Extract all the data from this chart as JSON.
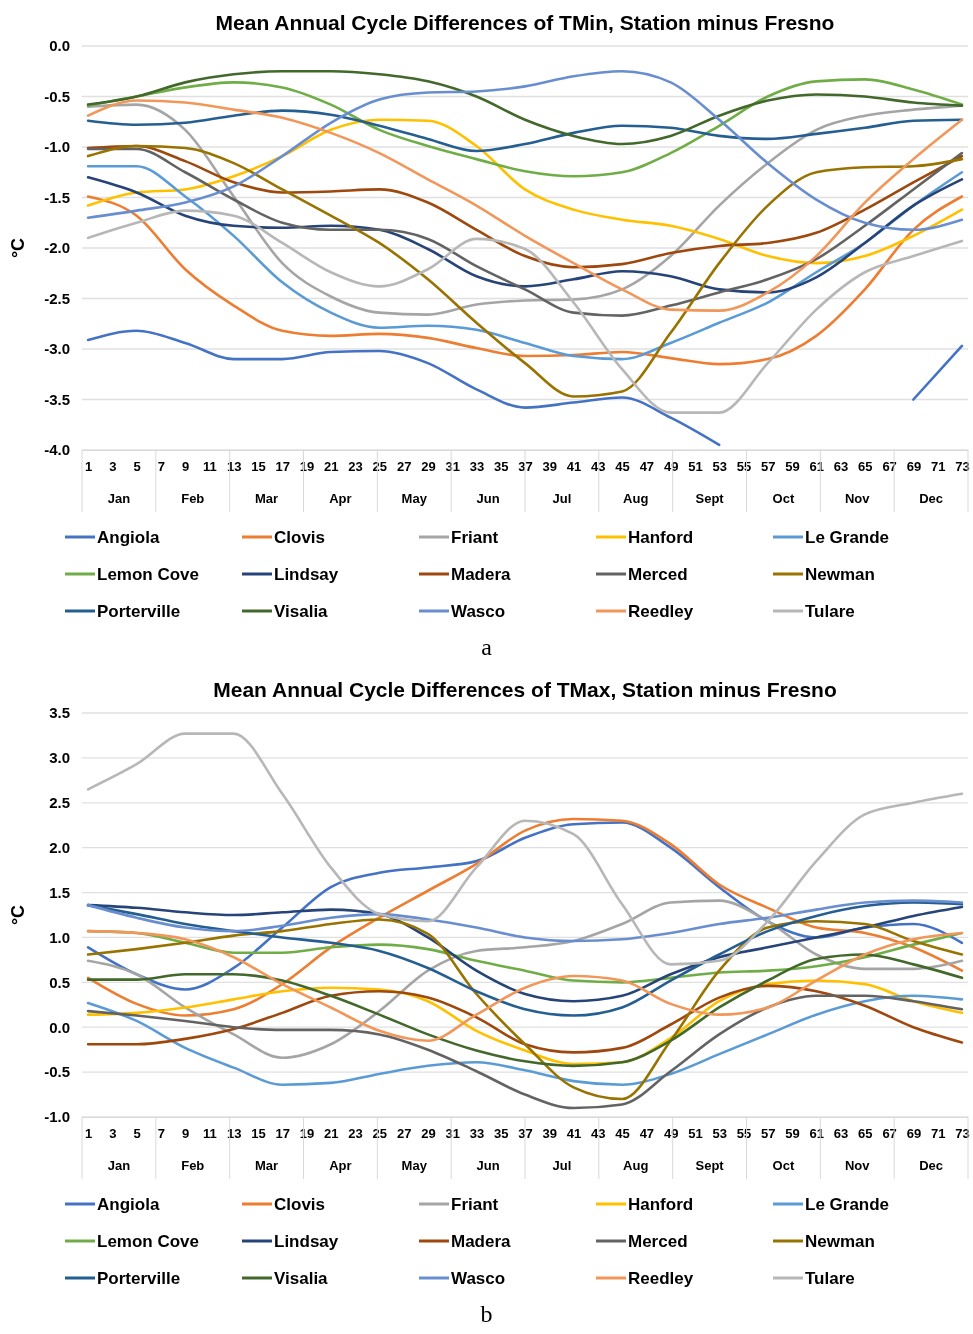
{
  "chart_data": [
    {
      "type": "line",
      "title": "Mean Annual Cycle Differences of TMin, Station minus Fresno",
      "ylabel": "°C",
      "xlim": [
        0.5,
        73.5
      ],
      "xticks": [
        1,
        3,
        5,
        7,
        9,
        11,
        13,
        15,
        17,
        19,
        21,
        23,
        25,
        27,
        29,
        31,
        33,
        35,
        37,
        39,
        41,
        43,
        45,
        47,
        49,
        51,
        53,
        55,
        57,
        59,
        61,
        63,
        65,
        67,
        69,
        71,
        73
      ],
      "ylim": [
        -4,
        0
      ],
      "yticks": [
        {
          "value": -4,
          "label": "-4.0"
        },
        {
          "value": -3.5,
          "label": "-3.5"
        },
        {
          "value": -3,
          "label": "-3.0"
        },
        {
          "value": -2.5,
          "label": "-2.5"
        },
        {
          "value": -2,
          "label": "-2.0"
        },
        {
          "value": -1.5,
          "label": "-1.5"
        },
        {
          "value": -1,
          "label": "-1.0"
        },
        {
          "value": -0.5,
          "label": "-0.5"
        },
        {
          "value": 0,
          "label": "0.0"
        }
      ],
      "grid": "y",
      "legend": "bottom",
      "x": [
        1,
        5,
        9,
        13,
        17,
        21,
        25,
        29,
        33,
        37,
        41,
        45,
        49,
        53,
        57,
        61,
        65,
        69,
        73
      ],
      "annotations": [
        "Jan",
        "Feb",
        "Mar",
        "Apr",
        "May",
        "Jun",
        "Jul",
        "Aug",
        "Sept",
        "Oct",
        "Nov",
        "Dec",
        "a"
      ],
      "series": [
        {
          "name": "Angiola",
          "color": "#4472c4",
          "values": [
            -2.91,
            -2.82,
            -2.94,
            -3.1,
            -3.1,
            -3.03,
            -3.02,
            -3.14,
            -3.4,
            -3.58,
            -3.53,
            -3.48,
            -3.68,
            -3.95,
            null,
            null,
            null,
            -3.5,
            -2.97
          ]
        },
        {
          "name": "Clovis",
          "color": "#ed7d31",
          "values": [
            -1.49,
            -1.68,
            -2.21,
            -2.57,
            -2.82,
            -2.87,
            -2.85,
            -2.89,
            -2.99,
            -3.07,
            -3.06,
            -3.03,
            -3.09,
            -3.15,
            -3.1,
            -2.87,
            -2.41,
            -1.82,
            -1.49
          ]
        },
        {
          "name": "Friant",
          "color": "#a5a5a5",
          "values": [
            -0.6,
            -0.58,
            -0.83,
            -1.49,
            -2.15,
            -2.48,
            -2.64,
            -2.66,
            -2.56,
            -2.52,
            -2.51,
            -2.41,
            -2.08,
            -1.58,
            -1.16,
            -0.83,
            -0.69,
            -0.63,
            -0.59
          ]
        },
        {
          "name": "Hanford",
          "color": "#ffc000",
          "values": [
            -1.58,
            -1.45,
            -1.42,
            -1.29,
            -1.09,
            -0.83,
            -0.73,
            -0.74,
            -0.99,
            -1.42,
            -1.62,
            -1.72,
            -1.78,
            -1.91,
            -2.08,
            -2.15,
            -2.08,
            -1.88,
            -1.62
          ]
        },
        {
          "name": "Le Grande",
          "color": "#5b9bd5",
          "values": [
            -1.19,
            -1.19,
            -1.49,
            -1.88,
            -2.34,
            -2.64,
            -2.79,
            -2.77,
            -2.81,
            -2.94,
            -3.07,
            -3.1,
            -2.94,
            -2.74,
            -2.54,
            -2.24,
            -1.95,
            -1.58,
            -1.25
          ]
        },
        {
          "name": "Lemon Cove",
          "color": "#70ad47",
          "values": [
            -0.59,
            -0.5,
            -0.41,
            -0.36,
            -0.41,
            -0.58,
            -0.83,
            -0.99,
            -1.12,
            -1.24,
            -1.29,
            -1.25,
            -1.06,
            -0.79,
            -0.5,
            -0.35,
            -0.33,
            -0.43,
            -0.58
          ]
        },
        {
          "name": "Lindsay",
          "color": "#264478",
          "values": [
            -1.3,
            -1.45,
            -1.68,
            -1.78,
            -1.8,
            -1.78,
            -1.82,
            -2.01,
            -2.28,
            -2.38,
            -2.31,
            -2.23,
            -2.28,
            -2.41,
            -2.44,
            -2.29,
            -1.95,
            -1.58,
            -1.32
          ]
        },
        {
          "name": "Madera",
          "color": "#9e480e",
          "values": [
            -1.01,
            -0.99,
            -1.14,
            -1.35,
            -1.45,
            -1.44,
            -1.42,
            -1.55,
            -1.82,
            -2.08,
            -2.19,
            -2.16,
            -2.05,
            -1.98,
            -1.95,
            -1.85,
            -1.62,
            -1.35,
            -1.09
          ]
        },
        {
          "name": "Merced",
          "color": "#636363",
          "values": [
            -1.02,
            -1.02,
            -1.25,
            -1.52,
            -1.75,
            -1.82,
            -1.82,
            -1.91,
            -2.18,
            -2.41,
            -2.64,
            -2.67,
            -2.57,
            -2.44,
            -2.31,
            -2.11,
            -1.78,
            -1.42,
            -1.06
          ]
        },
        {
          "name": "Newman",
          "color": "#997300",
          "values": [
            -1.09,
            -0.99,
            -1.01,
            -1.16,
            -1.42,
            -1.68,
            -1.95,
            -2.31,
            -2.74,
            -3.14,
            -3.47,
            -3.42,
            -2.84,
            -2.15,
            -1.58,
            -1.25,
            -1.2,
            -1.19,
            -1.12
          ]
        },
        {
          "name": "Porterville",
          "color": "#255e91",
          "values": [
            -0.74,
            -0.78,
            -0.76,
            -0.69,
            -0.64,
            -0.68,
            -0.79,
            -0.92,
            -1.04,
            -0.97,
            -0.86,
            -0.79,
            -0.81,
            -0.89,
            -0.92,
            -0.87,
            -0.81,
            -0.74,
            -0.73
          ]
        },
        {
          "name": "Visalia",
          "color": "#43682b",
          "values": [
            -0.58,
            -0.5,
            -0.36,
            -0.28,
            -0.25,
            -0.25,
            -0.28,
            -0.35,
            -0.5,
            -0.73,
            -0.89,
            -0.97,
            -0.89,
            -0.69,
            -0.54,
            -0.48,
            -0.5,
            -0.56,
            -0.59
          ]
        },
        {
          "name": "Wasco",
          "color": "#698ed0",
          "values": [
            -1.7,
            -1.63,
            -1.55,
            -1.39,
            -1.09,
            -0.76,
            -0.53,
            -0.46,
            -0.45,
            -0.4,
            -0.3,
            -0.25,
            -0.36,
            -0.73,
            -1.16,
            -1.52,
            -1.75,
            -1.82,
            -1.72
          ]
        },
        {
          "name": "Reedley",
          "color": "#f1975a",
          "values": [
            -0.69,
            -0.54,
            -0.56,
            -0.63,
            -0.71,
            -0.86,
            -1.06,
            -1.32,
            -1.58,
            -1.88,
            -2.15,
            -2.41,
            -2.61,
            -2.62,
            -2.44,
            -2.08,
            -1.55,
            -1.12,
            -0.73
          ]
        },
        {
          "name": "Tulare",
          "color": "#b7b7b7",
          "values": [
            -1.9,
            -1.75,
            -1.63,
            -1.68,
            -1.95,
            -2.24,
            -2.38,
            -2.21,
            -1.91,
            -2.01,
            -2.54,
            -3.2,
            -3.63,
            -3.63,
            -3.14,
            -2.61,
            -2.24,
            -2.08,
            -1.93
          ]
        }
      ]
    },
    {
      "type": "line",
      "title": "Mean Annual Cycle Differences of TMax, Station minus Fresno",
      "ylabel": "°C",
      "xlim": [
        0.5,
        73.5
      ],
      "xticks": [
        1,
        3,
        5,
        7,
        9,
        11,
        13,
        15,
        17,
        19,
        21,
        23,
        25,
        27,
        29,
        31,
        33,
        35,
        37,
        39,
        41,
        43,
        45,
        47,
        49,
        51,
        53,
        55,
        57,
        59,
        61,
        63,
        65,
        67,
        69,
        71,
        73
      ],
      "ylim": [
        -1,
        3.5
      ],
      "yticks": [
        {
          "value": -1,
          "label": "-1.0"
        },
        {
          "value": -0.5,
          "label": "-0.5"
        },
        {
          "value": 0,
          "label": "0.0"
        },
        {
          "value": 0.5,
          "label": "0.5"
        },
        {
          "value": 1,
          "label": "1.0"
        },
        {
          "value": 1.5,
          "label": "1.5"
        },
        {
          "value": 2,
          "label": "2.0"
        },
        {
          "value": 2.5,
          "label": "2.5"
        },
        {
          "value": 3,
          "label": "3.0"
        },
        {
          "value": 3.5,
          "label": "3.5"
        }
      ],
      "grid": "y",
      "legend": "bottom",
      "x": [
        1,
        5,
        9,
        13,
        17,
        21,
        25,
        29,
        33,
        37,
        41,
        45,
        49,
        53,
        57,
        61,
        65,
        69,
        73
      ],
      "annotations": [
        "Jan",
        "Feb",
        "Mar",
        "Apr",
        "May",
        "Jun",
        "Jul",
        "Aug",
        "Sept",
        "Oct",
        "Nov",
        "Dec",
        "b"
      ],
      "series": [
        {
          "name": "Angiola",
          "color": "#4472c4",
          "values": [
            0.89,
            0.59,
            0.42,
            0.66,
            1.11,
            1.56,
            1.72,
            1.78,
            1.85,
            2.11,
            2.26,
            2.28,
            2.0,
            1.56,
            1.18,
            1.0,
            1.11,
            1.15,
            0.94
          ]
        },
        {
          "name": "Clovis",
          "color": "#ed7d31",
          "values": [
            0.55,
            0.26,
            0.13,
            0.2,
            0.48,
            0.89,
            1.22,
            1.52,
            1.82,
            2.19,
            2.32,
            2.3,
            2.04,
            1.59,
            1.33,
            1.11,
            1.05,
            0.89,
            0.63
          ]
        },
        {
          "name": "Friant",
          "color": "#a5a5a5",
          "values": [
            0.74,
            0.59,
            0.22,
            -0.08,
            -0.34,
            -0.19,
            0.18,
            0.63,
            0.85,
            0.89,
            0.96,
            1.15,
            1.39,
            1.41,
            1.18,
            0.81,
            0.65,
            0.65,
            0.74
          ]
        },
        {
          "name": "Hanford",
          "color": "#ffc000",
          "values": [
            0.14,
            0.16,
            0.22,
            0.31,
            0.4,
            0.44,
            0.42,
            0.29,
            -0.04,
            -0.26,
            -0.41,
            -0.39,
            -0.12,
            0.29,
            0.48,
            0.52,
            0.48,
            0.29,
            0.16
          ]
        },
        {
          "name": "Le Grande",
          "color": "#5b9bd5",
          "values": [
            0.27,
            0.07,
            -0.23,
            -0.45,
            -0.64,
            -0.62,
            -0.52,
            -0.43,
            -0.39,
            -0.48,
            -0.6,
            -0.64,
            -0.52,
            -0.3,
            -0.08,
            0.14,
            0.29,
            0.35,
            0.31
          ]
        },
        {
          "name": "Lemon Cove",
          "color": "#70ad47",
          "values": [
            1.07,
            1.05,
            0.94,
            0.83,
            0.83,
            0.89,
            0.92,
            0.87,
            0.74,
            0.63,
            0.52,
            0.5,
            0.55,
            0.61,
            0.63,
            0.68,
            0.78,
            0.92,
            1.05
          ]
        },
        {
          "name": "Lindsay",
          "color": "#264478",
          "values": [
            1.36,
            1.33,
            1.28,
            1.25,
            1.28,
            1.31,
            1.26,
            1.0,
            0.63,
            0.37,
            0.29,
            0.35,
            0.59,
            0.78,
            0.89,
            1.0,
            1.11,
            1.24,
            1.34
          ]
        },
        {
          "name": "Madera",
          "color": "#9e480e",
          "values": [
            -0.19,
            -0.19,
            -0.13,
            -0.02,
            0.16,
            0.35,
            0.4,
            0.33,
            0.11,
            -0.19,
            -0.28,
            -0.23,
            0.03,
            0.33,
            0.46,
            0.4,
            0.24,
            0.0,
            -0.17
          ]
        },
        {
          "name": "Merced",
          "color": "#636363",
          "values": [
            0.18,
            0.13,
            0.07,
            0.0,
            -0.03,
            -0.03,
            -0.08,
            -0.25,
            -0.49,
            -0.75,
            -0.9,
            -0.86,
            -0.49,
            -0.08,
            0.22,
            0.35,
            0.35,
            0.29,
            0.2
          ]
        },
        {
          "name": "Newman",
          "color": "#997300",
          "values": [
            0.81,
            0.87,
            0.94,
            1.02,
            1.07,
            1.15,
            1.2,
            1.04,
            0.37,
            -0.19,
            -0.67,
            -0.8,
            -0.15,
            0.63,
            1.11,
            1.18,
            1.15,
            0.96,
            0.81
          ]
        },
        {
          "name": "Porterville",
          "color": "#255e91",
          "values": [
            1.36,
            1.26,
            1.15,
            1.07,
            1.0,
            0.94,
            0.85,
            0.66,
            0.4,
            0.2,
            0.13,
            0.22,
            0.52,
            0.81,
            1.07,
            1.24,
            1.35,
            1.39,
            1.37
          ]
        },
        {
          "name": "Visalia",
          "color": "#43682b",
          "values": [
            0.53,
            0.53,
            0.59,
            0.59,
            0.52,
            0.35,
            0.14,
            -0.08,
            -0.26,
            -0.38,
            -0.43,
            -0.39,
            -0.15,
            0.22,
            0.52,
            0.76,
            0.81,
            0.7,
            0.55
          ]
        },
        {
          "name": "Wasco",
          "color": "#698ed0",
          "values": [
            1.36,
            1.22,
            1.11,
            1.07,
            1.13,
            1.22,
            1.26,
            1.2,
            1.11,
            1.0,
            0.96,
            0.98,
            1.05,
            1.15,
            1.22,
            1.31,
            1.39,
            1.41,
            1.39
          ]
        },
        {
          "name": "Reedley",
          "color": "#f1975a",
          "values": [
            1.07,
            1.05,
            0.98,
            0.78,
            0.48,
            0.22,
            -0.04,
            -0.15,
            0.14,
            0.44,
            0.57,
            0.52,
            0.26,
            0.14,
            0.22,
            0.52,
            0.81,
            0.98,
            1.05
          ]
        },
        {
          "name": "Tulare",
          "color": "#b7b7b7",
          "values": [
            2.65,
            2.93,
            3.27,
            3.27,
            2.6,
            1.78,
            1.26,
            1.18,
            1.78,
            2.3,
            2.15,
            1.37,
            0.7,
            0.74,
            1.18,
            1.85,
            2.37,
            2.5,
            2.6
          ]
        }
      ]
    }
  ]
}
